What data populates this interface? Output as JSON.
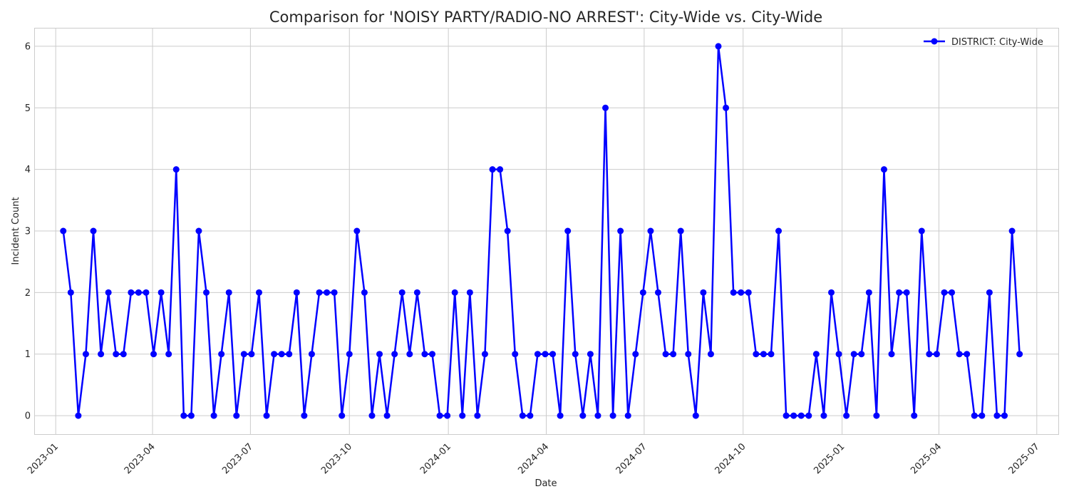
{
  "chart_data": {
    "type": "line",
    "title": "Comparison for 'NOISY PARTY/RADIO-NO ARREST': City-Wide vs. City-Wide",
    "xlabel": "Date",
    "ylabel": "Incident Count",
    "xlim": [
      "2022-12-12",
      "2025-07-21"
    ],
    "ylim": [
      -0.3,
      6.3
    ],
    "x_ticks": [
      "2023-01-01",
      "2023-04-01",
      "2023-07-01",
      "2023-10-01",
      "2024-01-01",
      "2024-04-01",
      "2024-07-01",
      "2024-10-01",
      "2025-01-01",
      "2025-04-01",
      "2025-07-01"
    ],
    "x_tick_labels": [
      "2023-01",
      "2023-04",
      "2023-07",
      "2023-10",
      "2024-01",
      "2024-04",
      "2024-07",
      "2024-10",
      "2025-01",
      "2025-04",
      "2025-07"
    ],
    "y_ticks": [
      0,
      1,
      2,
      3,
      4,
      5,
      6
    ],
    "y_tick_labels": [
      "0",
      "1",
      "2",
      "3",
      "4",
      "5",
      "6"
    ],
    "grid": true,
    "legend": "top-right",
    "series": [
      {
        "name": "DISTRICT: City-Wide",
        "color": "#0000ff",
        "marker": "circle",
        "start": "2023-01-08",
        "interval": "weekly",
        "values": [
          3,
          2,
          0,
          1,
          3,
          1,
          2,
          1,
          1,
          2,
          2,
          2,
          1,
          2,
          1,
          4,
          0,
          0,
          3,
          2,
          0,
          1,
          2,
          0,
          1,
          1,
          2,
          0,
          1,
          1,
          1,
          2,
          0,
          1,
          2,
          2,
          2,
          0,
          1,
          3,
          2,
          0,
          1,
          0,
          1,
          2,
          1,
          2,
          1,
          1,
          0,
          0,
          2,
          0,
          2,
          0,
          1,
          4,
          4,
          3,
          1,
          0,
          0,
          1,
          1,
          1,
          0,
          3,
          1,
          0,
          1,
          0,
          5,
          0,
          3,
          0,
          1,
          2,
          3,
          2,
          1,
          1,
          3,
          1,
          0,
          2,
          1,
          6,
          5,
          2,
          2,
          2,
          1,
          1,
          1,
          3,
          0,
          0,
          0,
          0,
          1,
          0,
          2,
          1,
          0,
          1,
          1,
          2,
          0,
          4,
          1,
          2,
          2,
          0,
          3,
          1,
          1,
          2,
          2,
          1,
          1,
          0,
          0,
          2,
          0,
          0,
          3,
          1
        ]
      }
    ]
  }
}
